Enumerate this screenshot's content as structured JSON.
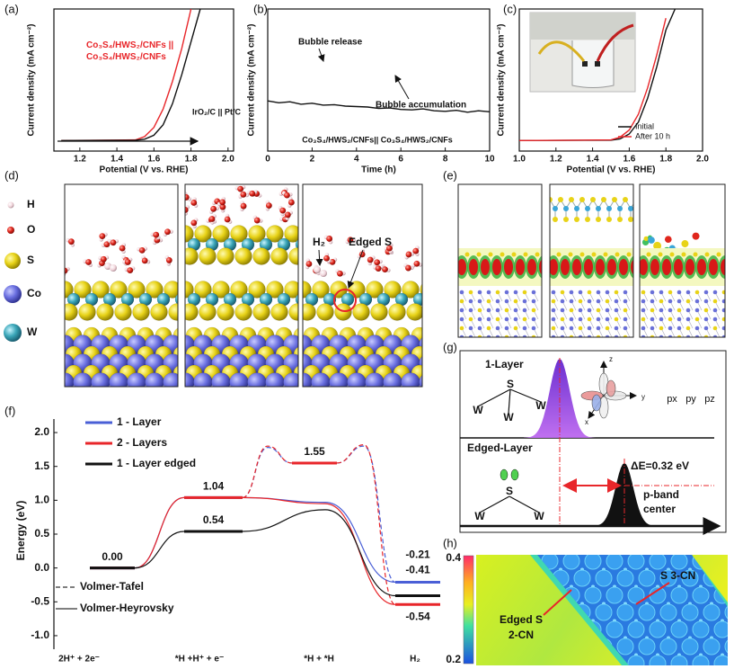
{
  "chart_data": [
    {
      "type": "line",
      "panel_label": "(a)",
      "xlabel": "Potential (V vs. RHE)",
      "ylabel": "Current density (mA cm⁻²)",
      "xlim": [
        1.06,
        2.03
      ],
      "ylim": [
        -8,
        100
      ],
      "xticks": [
        1.2,
        1.4,
        1.6,
        1.8,
        {
          "value": 2.0,
          "label": "2.0"
        }
      ],
      "x": [
        1.1,
        1.5,
        1.55,
        1.6,
        1.65,
        1.7,
        1.75,
        1.8,
        1.85
      ],
      "series": [
        {
          "name": "Co₃S₄/HWS₂/CNFs || Co₃S₄/HWS₂/CNFs",
          "color": "#e8262a",
          "values": [
            0,
            0.5,
            3,
            10,
            24,
            45,
            70,
            100,
            null
          ]
        },
        {
          "name": "IrO₂/C || Pt/C",
          "color": "#111111",
          "values": [
            0,
            0.2,
            1,
            4,
            12,
            28,
            50,
            75,
            100
          ]
        }
      ]
    },
    {
      "type": "line",
      "panel_label": "(b)",
      "xlabel": "Time (h)",
      "ylabel": "Current density (mA cm⁻²)",
      "xlim": [
        0,
        10
      ],
      "ylim": [
        0,
        30
      ],
      "xticks": [
        0,
        2,
        4,
        6,
        8,
        10
      ],
      "x": [
        0,
        0.5,
        1,
        1.5,
        2,
        2.5,
        3,
        3.5,
        4,
        4.5,
        5,
        5.5,
        6,
        6.5,
        7,
        7.5,
        8,
        8.5,
        9,
        9.5,
        10
      ],
      "annotations": [
        "Bubble release",
        "Bubble accumulation"
      ],
      "series": [
        {
          "name": "Co₃S₄/HWS₂/CNFs|| Co₃S₄/HWS₂/CNFs",
          "color": "#111111",
          "values": [
            10.6,
            10.2,
            10.4,
            9.9,
            10.1,
            9.7,
            9.8,
            9.5,
            9.4,
            9.3,
            9.0,
            9.1,
            8.8,
            8.7,
            8.9,
            8.5,
            8.4,
            8.6,
            8.2,
            8.5,
            8.3
          ]
        }
      ]
    },
    {
      "type": "line",
      "panel_label": "(c)",
      "xlabel": "Potential (V vs. RHE)",
      "ylabel": "Current density (mA cm⁻²)",
      "xlim": [
        1.0,
        2.0
      ],
      "ylim": [
        -8,
        100
      ],
      "xticks": [
        {
          "value": 1.0,
          "label": "1.0"
        },
        1.2,
        1.4,
        1.6,
        1.8,
        {
          "value": 2.0,
          "label": "2.0"
        }
      ],
      "x": [
        1.0,
        1.5,
        1.55,
        1.6,
        1.65,
        1.7,
        1.75,
        1.8,
        1.85
      ],
      "series": [
        {
          "name": "Initial",
          "color": "#111111",
          "values": [
            0,
            0.3,
            1.2,
            5,
            14,
            32,
            56,
            84,
            100
          ]
        },
        {
          "name": "After 10 h",
          "color": "#e8262a",
          "values": [
            0,
            0.5,
            2.5,
            8,
            20,
            40,
            65,
            93,
            null
          ]
        }
      ]
    },
    {
      "type": "energy",
      "panel_label": "(f)",
      "ylabel": "Energy (eV)",
      "ylim": [
        -1.2,
        2.2
      ],
      "yticks": [
        {
          "value": -1.0,
          "label": "-1.0"
        },
        {
          "value": -0.5,
          "label": "-0.5"
        },
        {
          "value": 0,
          "label": "0.0"
        },
        0.5,
        {
          "value": 1.0,
          "label": "1.0"
        },
        1.5,
        {
          "value": 2.0,
          "label": "2.0"
        }
      ],
      "categories": [
        "2H⁺ + 2e⁻",
        "*H +H⁺ + e⁻",
        "*H + *H",
        "H₂"
      ],
      "series": [
        {
          "name": "1 - Layer",
          "color": "#4a5fd6",
          "values": [
            0,
            1.04,
            1.55,
            -0.21
          ],
          "value_labels": [
            null,
            null,
            null,
            "-0.21"
          ],
          "tafel_ts": [
            1.78,
            1.8
          ],
          "heyrovsky_ts": 0.97
        },
        {
          "name": "2 - Layers",
          "color": "#e8262a",
          "values": [
            0,
            1.04,
            1.55,
            -0.54
          ],
          "value_labels": [
            null,
            "1.04",
            "1.55",
            "-0.54"
          ],
          "tafel_ts": [
            1.8,
            1.82
          ],
          "heyrovsky_ts": 0.95
        },
        {
          "name": "1 - Layer edged",
          "color": "#111111",
          "values": [
            0,
            0.54,
            null,
            -0.41
          ],
          "value_labels": [
            "0.00",
            "0.54",
            null,
            "-0.41"
          ],
          "heyrovsky_ts": 0.86
        }
      ],
      "path_legend": [
        {
          "name": "Volmer-Tafel",
          "dash": "5,3"
        },
        {
          "name": "Volmer-Heyrovsky",
          "dash": "none"
        }
      ]
    }
  ],
  "panel_d": {
    "label": "(d)",
    "legend": [
      "H",
      "O",
      "S",
      "Co",
      "W"
    ],
    "annotations": [
      "H₂",
      "Edged S"
    ]
  },
  "panel_e": {
    "label": "(e)"
  },
  "panel_g": {
    "label": "(g)",
    "top_label": "1-Layer",
    "bottom_label": "Edged-Layer",
    "top_atoms": [
      "S",
      "W",
      "W",
      "W"
    ],
    "bottom_atoms": [
      "S",
      "W",
      "W"
    ],
    "orbital_axes": [
      "z",
      "y",
      "x"
    ],
    "orbitals": [
      "px",
      "py",
      "pz"
    ],
    "delta": "ΔE=0.32 eV",
    "band_center": [
      "p-band",
      "center"
    ]
  },
  "panel_h": {
    "label": "(h)",
    "colorbar_ticks": [
      0.4,
      0.2
    ],
    "sites": [
      "S 3-CN",
      "Edged S",
      "2-CN"
    ]
  }
}
